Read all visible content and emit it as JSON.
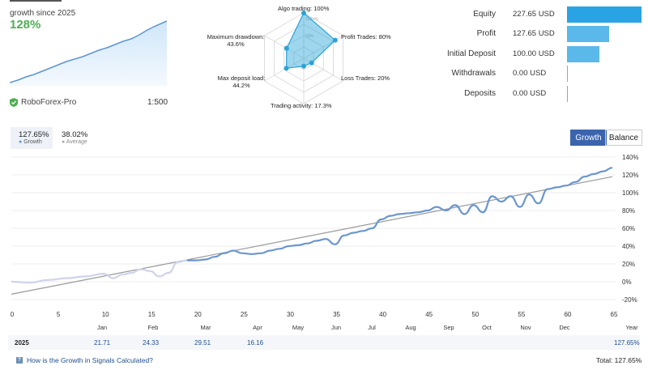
{
  "summary": {
    "growth_title": "growth since 2025",
    "growth_value": "128%",
    "broker": "RoboForex-Pro",
    "leverage": "1:500"
  },
  "radar": {
    "labels": {
      "algo": "Algo trading: 100%",
      "profit": "Profit Trades: 80%",
      "loss": "Loss Trades: 20%",
      "activity": "Trading activity: 17.3%",
      "deposit_load_title": "Max deposit load:",
      "deposit_load_value": "44.2%",
      "drawdown_title": "Maximum drawdown:",
      "drawdown_value": "43.6%"
    },
    "ring_labels": [
      "100+%",
      "50%"
    ],
    "values": [
      1.0,
      0.8,
      0.2,
      0.173,
      0.442,
      0.436
    ],
    "color": "#29a3d9"
  },
  "stats": [
    {
      "label": "Equity",
      "value": "227.65 USD",
      "ratio": 1.0,
      "color": "#29a3e3"
    },
    {
      "label": "Profit",
      "value": "127.65 USD",
      "ratio": 0.56,
      "color": "#5ab8ea"
    },
    {
      "label": "Initial Deposit",
      "value": "100.00 USD",
      "ratio": 0.44,
      "color": "#5ab8ea"
    },
    {
      "label": "Withdrawals",
      "value": "0.00 USD",
      "ratio": 0.0,
      "color": "#5ab8ea"
    },
    {
      "label": "Deposits",
      "value": "0.00 USD",
      "ratio": 0.0,
      "color": "#5ab8ea"
    }
  ],
  "tabs": {
    "growth_value": "127.65%",
    "growth_label": "Growth",
    "average_value": "38.02%",
    "average_label": "Average"
  },
  "buttons": {
    "growth": "Growth",
    "balance": "Balance"
  },
  "chart_data": {
    "type": "line",
    "x_ticks": [
      0,
      5,
      10,
      15,
      20,
      25,
      30,
      35,
      40,
      45,
      50,
      55,
      60,
      65
    ],
    "y_ticks": [
      "140%",
      "120%",
      "100%",
      "80%",
      "60%",
      "40%",
      "20%",
      "0%",
      "-20%"
    ],
    "months": [
      "Jan",
      "Feb",
      "Mar",
      "Apr",
      "May",
      "Jun",
      "Jul",
      "Aug",
      "Sep",
      "Oct",
      "Nov",
      "Dec"
    ],
    "month_axis_label": "Year",
    "xlim": [
      0,
      65
    ],
    "ylim": [
      -20,
      140
    ],
    "series": [
      {
        "color": "#6a96cf",
        "x": [
          0,
          2,
          4,
          6,
          8,
          10,
          11,
          12,
          13,
          14,
          15,
          16,
          17,
          18,
          19,
          20,
          21,
          22,
          23,
          24,
          25,
          26,
          27,
          28,
          29,
          30,
          31,
          32,
          33,
          34,
          35,
          36,
          37,
          38,
          39,
          40,
          41,
          42,
          43,
          44,
          45,
          46,
          47,
          48,
          49,
          50,
          51,
          52,
          53,
          54,
          55,
          56,
          57,
          58,
          59,
          60,
          61,
          62,
          63,
          64,
          65
        ],
        "y": [
          0,
          -1,
          2,
          4,
          6,
          9,
          4,
          8,
          10,
          14,
          12,
          6,
          10,
          22,
          24,
          24,
          25,
          28,
          32,
          35,
          32,
          31,
          32,
          35,
          37,
          40,
          41,
          43,
          46,
          48,
          42,
          52,
          55,
          57,
          60,
          70,
          74,
          76,
          77,
          78,
          80,
          84,
          80,
          86,
          76,
          86,
          78,
          96,
          90,
          96,
          84,
          98,
          88,
          104,
          106,
          108,
          112,
          118,
          121,
          124,
          128
        ]
      }
    ],
    "trend": {
      "x": [
        0,
        65
      ],
      "y": [
        -14,
        118
      ],
      "color": "#999999"
    }
  },
  "year_row": {
    "year": "2025",
    "values": [
      {
        "month": "Jan",
        "value": "21.71"
      },
      {
        "month": "Feb",
        "value": "24.33"
      },
      {
        "month": "Mar",
        "value": "29.51"
      },
      {
        "month": "Apr",
        "value": "16.16"
      }
    ],
    "year_total": "127.65%"
  },
  "footer": {
    "help_link": "How is the Growth in Signals Calculated?",
    "total": "Total: 127.65%"
  }
}
